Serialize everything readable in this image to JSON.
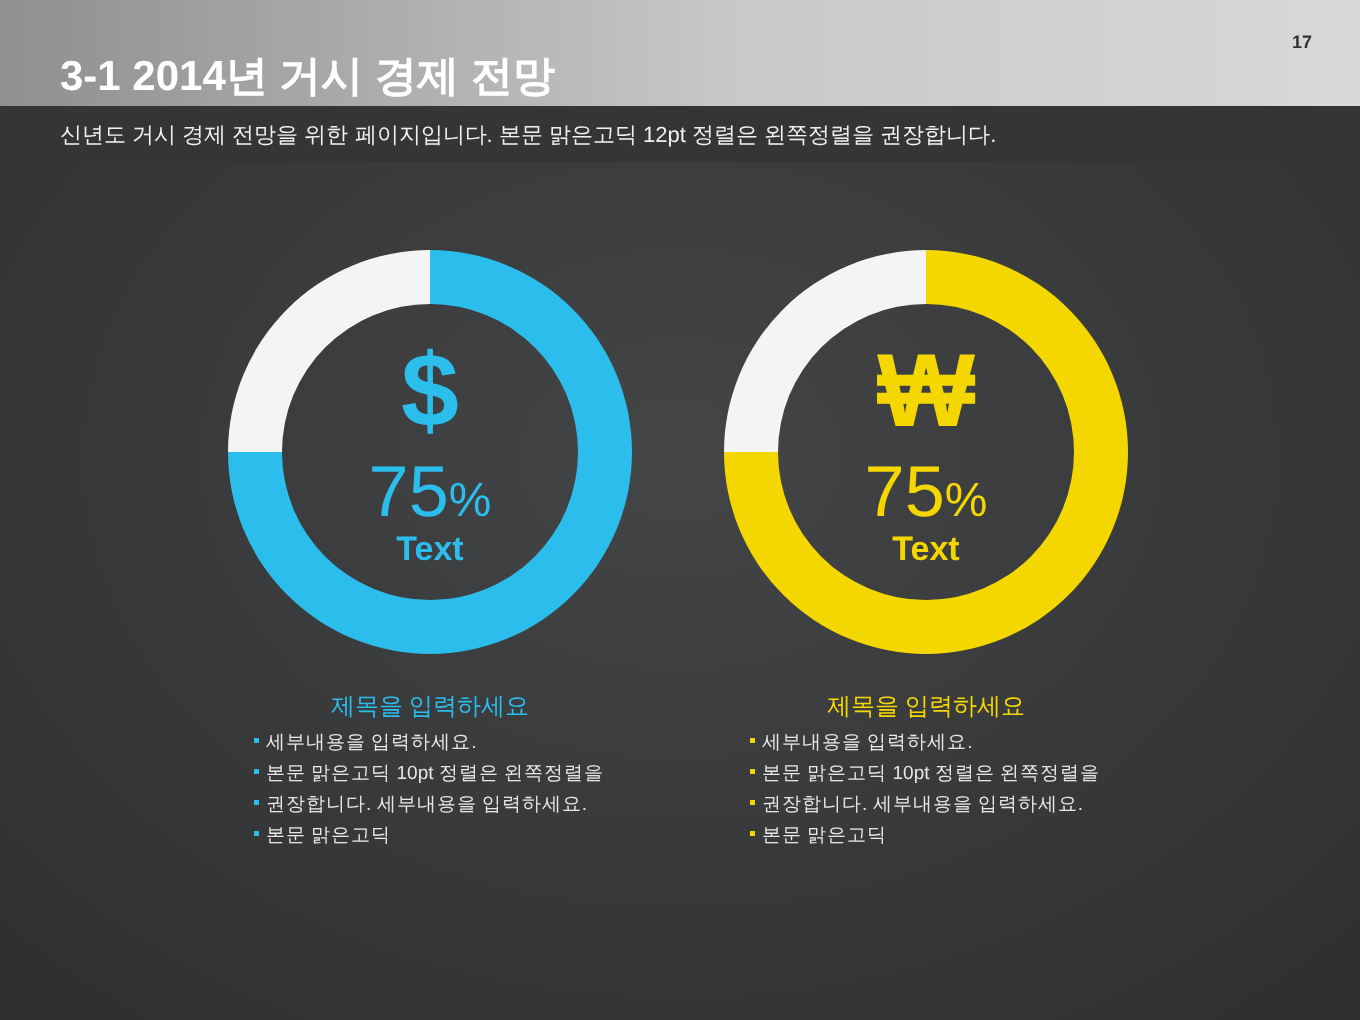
{
  "chart_data": [
    {
      "type": "donut",
      "title": "3-1 2014년 거시 경제 전망",
      "subtitle": "신년도 거시 경제 전망을 위한 페이지입니다. 본문 맑은고딕 12pt 정렬은 왼쪽정렬을 권장합니다.",
      "categories": [
        null,
        null
      ],
      "values": [
        75,
        25
      ],
      "colors": [
        "#2bbdec",
        "#f4f4f4"
      ],
      "annotations": [
        "$",
        "75%",
        "Text",
        "제목을 입력하세요",
        "세부내용을 입력하세요.\n본문 맑은고딕 10pt 정렬은 왼쪽정렬을\n권장합니다. 세부내용을 입력하세요.\n본문 맑은고딕",
        "17"
      ]
    },
    {
      "type": "donut",
      "categories": [
        null,
        null
      ],
      "values": [
        75,
        25
      ],
      "colors": [
        "#f5d700",
        "#f4f4f4"
      ],
      "annotations": [
        "₩",
        "75%",
        "Text",
        "제목을 입력하세요",
        "세부내용을 입력하세요.\n본문 맑은고딕 10pt 정렬은 왼쪽정렬을\n권장합니다. 세부내용을 입력하세요.\n본문 맑은고딕"
      ]
    }
  ]
}
